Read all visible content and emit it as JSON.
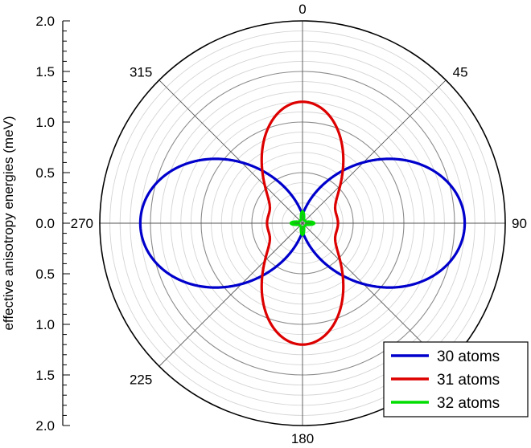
{
  "chart_data": {
    "type": "polar-line",
    "ylabel": "effective anisotropy energies (meV)",
    "radial_axis": {
      "range": [
        0,
        2.0
      ],
      "tick_labels": [
        "2.0",
        "1.5",
        "1.0",
        "0.5",
        "0.0",
        "0.5",
        "1.0",
        "1.5",
        "2.0"
      ]
    },
    "angular_ticks": [
      {
        "angle": 0,
        "label": "0"
      },
      {
        "angle": 45,
        "label": "45"
      },
      {
        "angle": 90,
        "label": "90"
      },
      {
        "angle": 180,
        "label": "180"
      },
      {
        "angle": 225,
        "label": "225"
      },
      {
        "angle": 270,
        "label": "270"
      },
      {
        "angle": 315,
        "label": "315"
      }
    ],
    "grid": true,
    "legend_position": "bottom-right",
    "series": [
      {
        "name": "30 atoms",
        "color": "#0000cc",
        "model": "a*|sin^2(theta)| + c",
        "a": 1.5,
        "c": 0.1
      },
      {
        "name": "31 atoms",
        "color": "#dd0000",
        "model": "a*cos^2(theta) + b*cos^2(2*theta) + c",
        "a": 0.85,
        "b": 0.25,
        "c": 0.1
      },
      {
        "name": "32 atoms",
        "color": "#00dd00",
        "model": "c + a*|cos(2*theta)|^8",
        "a": 0.08,
        "c": 0.035
      }
    ]
  }
}
